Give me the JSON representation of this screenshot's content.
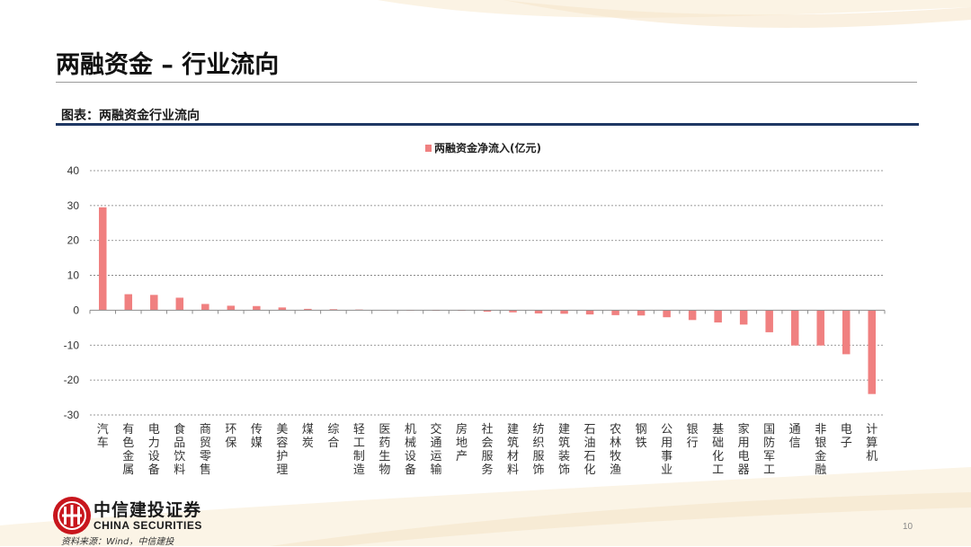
{
  "slide": {
    "title": "两融资金 – 行业流向",
    "caption": "图表：两融资金行业流向",
    "source": "资料来源：Wind，中信建投",
    "page_number": "10"
  },
  "brand": {
    "name_cn": "中信建投证券",
    "name_en": "CHINA SECURITIES",
    "color": "#c8161d"
  },
  "chart_data": {
    "type": "bar",
    "legend": "两融资金净流入(亿元)",
    "legend_position": "top-center",
    "bar_color": "#f08080",
    "grid": true,
    "ylim": [
      -30,
      40
    ],
    "yticks": [
      40,
      30,
      20,
      10,
      0,
      -10,
      -20,
      -30
    ],
    "categories": [
      "汽车",
      "有色金属",
      "电力设备",
      "食品饮料",
      "商贸零售",
      "环保",
      "传媒",
      "美容护理",
      "煤炭",
      "综合",
      "轻工制造",
      "医药生物",
      "机械设备",
      "交通运输",
      "房地产",
      "社会服务",
      "建筑材料",
      "纺织服饰",
      "建筑装饰",
      "石油石化",
      "农林牧渔",
      "钢铁",
      "公用事业",
      "银行",
      "基础化工",
      "家用电器",
      "国防军工",
      "通信",
      "非银金融",
      "电子",
      "计算机"
    ],
    "values": [
      29.5,
      4.6,
      4.4,
      3.6,
      1.8,
      1.3,
      1.2,
      0.8,
      0.4,
      0.3,
      0.2,
      0.1,
      0.05,
      -0.05,
      -0.1,
      -0.4,
      -0.6,
      -0.9,
      -1.0,
      -1.2,
      -1.4,
      -1.5,
      -2.0,
      -2.8,
      -3.5,
      -4.1,
      -6.3,
      -10.1,
      -10.1,
      -12.6,
      -24.0
    ]
  }
}
